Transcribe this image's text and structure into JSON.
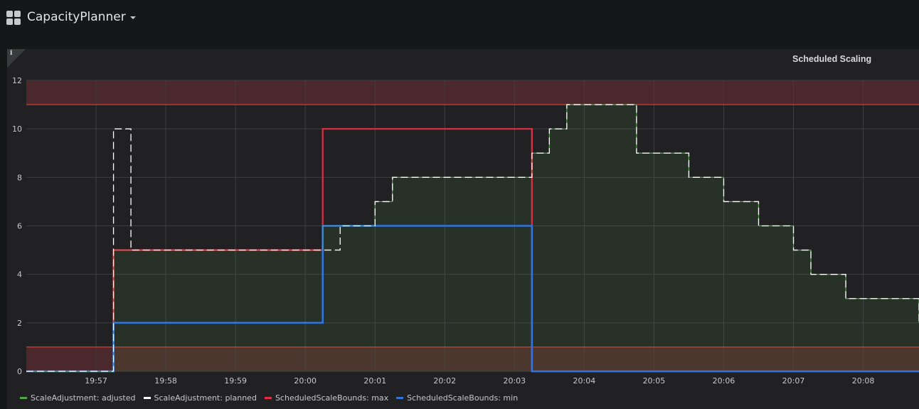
{
  "header": {
    "dashboard_title": "CapacityPlanner",
    "apps_icon": "grid-icon",
    "dropdown_icon": "caret-down-icon"
  },
  "panel": {
    "title": "Scheduled Scaling",
    "info_icon": "info-icon",
    "info_glyph": "i"
  },
  "colors": {
    "adjusted": "#56a64b",
    "planned": "#ffffff",
    "max": "#e02f44",
    "min": "#3274d9",
    "threshold_line": "#c4342f",
    "threshold_fill": "#5a2b2e"
  },
  "chart_data": {
    "type": "line",
    "step": true,
    "x_unit": "time",
    "x_range": [
      "19:56:00",
      "20:08:48"
    ],
    "ylim": [
      0,
      12
    ],
    "y_ticks": [
      "0",
      "2",
      "4",
      "6",
      "8",
      "10",
      "12"
    ],
    "x_ticks": [
      "19:57",
      "19:58",
      "19:59",
      "20:00",
      "20:01",
      "20:02",
      "20:03",
      "20:04",
      "20:05",
      "20:06",
      "20:07",
      "20:08"
    ],
    "grid": true,
    "legend": "bottom-left",
    "thresholds": [
      {
        "type": "above",
        "value": 11
      },
      {
        "type": "below",
        "value": 1
      }
    ],
    "series": [
      {
        "name": "ScaleAdjustment: adjusted",
        "x": [
          "19:56:00",
          "19:57:15",
          "19:57:30",
          "20:00:15",
          "20:00:30",
          "20:00:45",
          "20:01:00",
          "20:01:15",
          "20:03:15",
          "20:03:30",
          "20:03:45",
          "20:04:45",
          "20:05:15",
          "20:05:30",
          "20:06:00",
          "20:06:15",
          "20:06:30",
          "20:07:00",
          "20:07:15",
          "20:07:45",
          "20:08:00",
          "20:08:48"
        ],
        "values": [
          0,
          5,
          5,
          6,
          6,
          6,
          7,
          8,
          9,
          10,
          11,
          9,
          9,
          8,
          7,
          7,
          6,
          5,
          4,
          3,
          3,
          2
        ]
      },
      {
        "name": "ScaleAdjustment: planned",
        "x": [
          "19:56:00",
          "19:57:15",
          "19:57:30",
          "20:00:15",
          "20:00:30",
          "20:00:45",
          "20:01:00",
          "20:01:15",
          "20:03:15",
          "20:03:30",
          "20:03:45",
          "20:04:45",
          "20:05:15",
          "20:05:30",
          "20:06:00",
          "20:06:15",
          "20:06:30",
          "20:07:00",
          "20:07:15",
          "20:07:45",
          "20:08:00",
          "20:08:48"
        ],
        "values": [
          0,
          10,
          5,
          5,
          6,
          6,
          7,
          8,
          9,
          10,
          11,
          9,
          9,
          8,
          7,
          7,
          6,
          5,
          4,
          3,
          3,
          2
        ]
      },
      {
        "name": "ScheduledScaleBounds: max",
        "x": [
          "19:56:00",
          "19:57:15",
          "20:00:15",
          "20:03:15",
          "20:08:48"
        ],
        "values": [
          0,
          5,
          10,
          0,
          0
        ]
      },
      {
        "name": "ScheduledScaleBounds: min",
        "x": [
          "19:56:00",
          "19:57:15",
          "20:00:15",
          "20:03:15",
          "20:08:48"
        ],
        "values": [
          0,
          2,
          6,
          0,
          0
        ]
      }
    ]
  }
}
